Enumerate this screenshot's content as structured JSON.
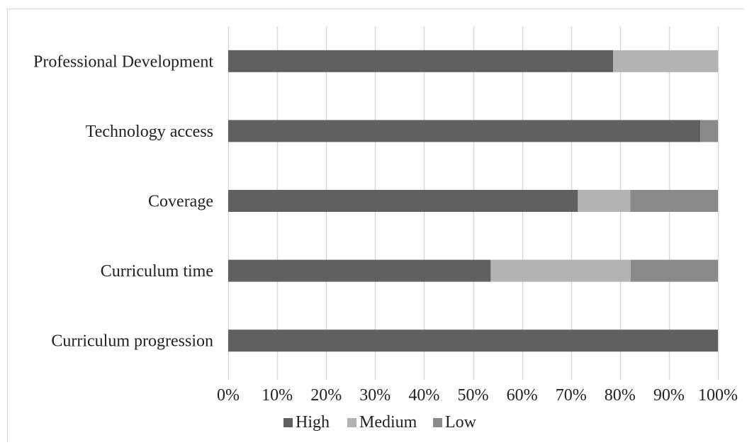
{
  "chart_data": {
    "type": "bar",
    "orientation": "horizontal",
    "stacked": "percent",
    "categories": [
      "Professional Development",
      "Technology access",
      "Coverage",
      "Curriculum time",
      "Curriculum progression"
    ],
    "series": [
      {
        "name": "High",
        "color": "#606060",
        "values": [
          78.6,
          96.4,
          71.4,
          53.6,
          100
        ]
      },
      {
        "name": "Medium",
        "color": "#b3b3b3",
        "values": [
          21.4,
          0,
          10.7,
          28.6,
          0
        ]
      },
      {
        "name": "Low",
        "color": "#8a8a8a",
        "values": [
          0,
          3.6,
          17.9,
          17.8,
          0
        ]
      }
    ],
    "xlim": [
      0,
      100
    ],
    "x_ticks": [
      "0%",
      "10%",
      "20%",
      "30%",
      "40%",
      "50%",
      "60%",
      "70%",
      "80%",
      "90%",
      "100%"
    ],
    "grid": "vertical",
    "legend": "bottom"
  }
}
